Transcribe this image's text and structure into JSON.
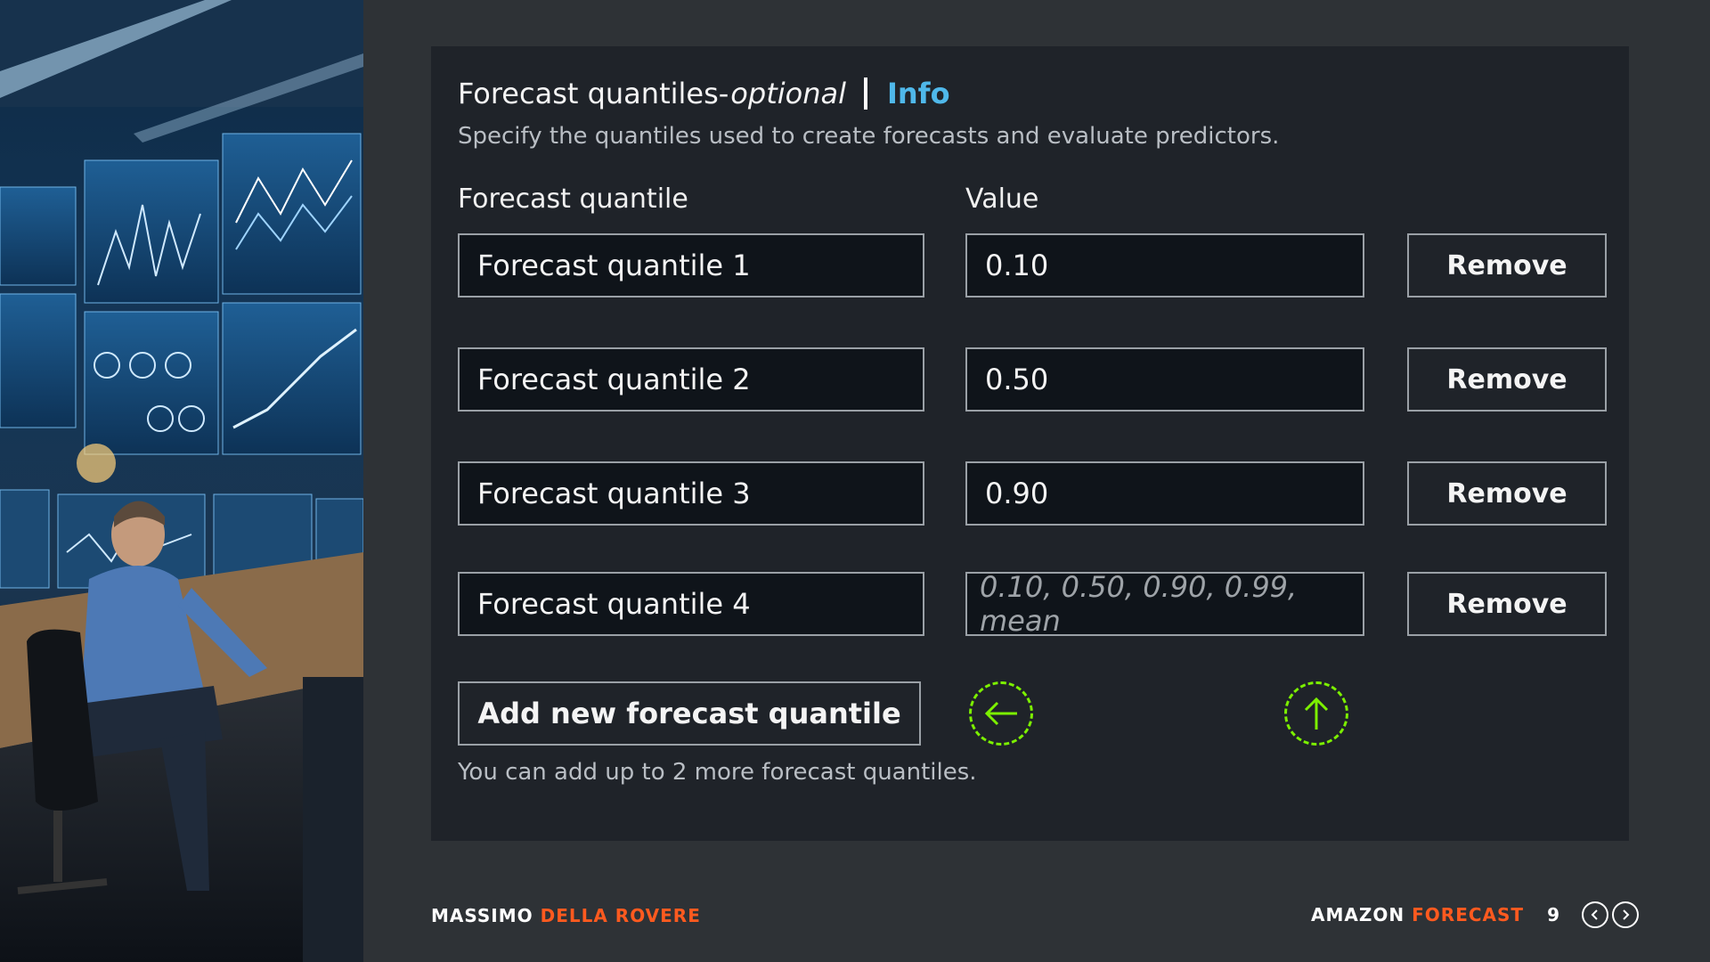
{
  "panel": {
    "title_main": "Forecast quantiles-",
    "title_optional": "optional",
    "info_link": "Info",
    "subtitle": "Specify the quantiles used to create forecasts and evaluate predictors.",
    "col_quantile": "Forecast quantile",
    "col_value": "Value",
    "rows": [
      {
        "name": "Forecast quantile 1",
        "value": "0.10",
        "remove": "Remove"
      },
      {
        "name": "Forecast quantile 2",
        "value": "0.50",
        "remove": "Remove"
      },
      {
        "name": "Forecast quantile 3",
        "value": "0.90",
        "remove": "Remove"
      },
      {
        "name": "Forecast quantile 4",
        "value": "",
        "placeholder": "0.10, 0.50, 0.90, 0.99, mean",
        "remove": "Remove"
      }
    ],
    "add_button": "Add new forecast quantile",
    "helper_text": "You can add up to 2 more forecast quantiles."
  },
  "icons": {
    "left_arrow": "arrow-left-icon",
    "up_arrow": "arrow-up-icon",
    "accent_color": "#7cf000"
  },
  "footer": {
    "author_first": "MASSIMO",
    "author_last": "DELLA ROVERE",
    "product_first": "AMAZON",
    "product_second": "FORECAST",
    "page_number": "9"
  },
  "colors": {
    "background": "#2e3236",
    "panel": "#1f2329",
    "link": "#4fb8ea",
    "brand_accent": "#ff5a1f"
  }
}
